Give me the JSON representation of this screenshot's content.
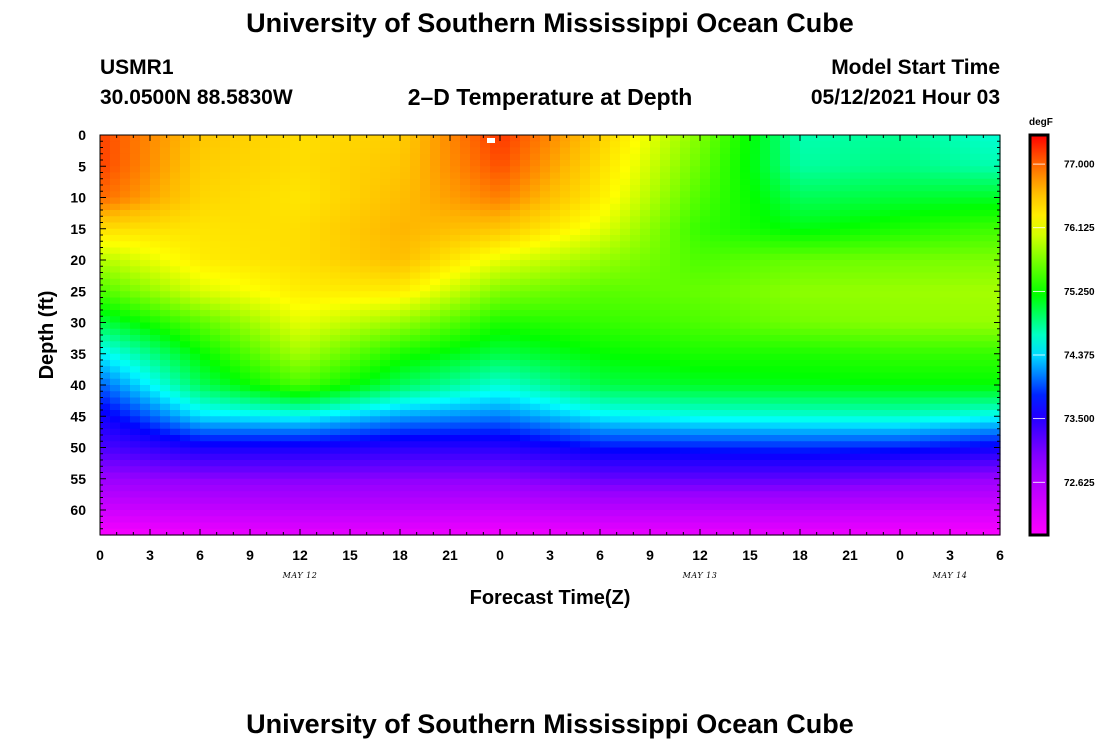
{
  "header": {
    "title_top": "University of Southern Mississippi Ocean Cube",
    "title_bottom": "University of Southern Mississippi Ocean Cube",
    "station_id": "USMR1",
    "station_coords": "30.0500N  88.5830W",
    "plot_title": "2–D Temperature at Depth",
    "model_start_label": "Model Start Time",
    "model_start_value": "05/12/2021 Hour 03"
  },
  "chart_data": {
    "type": "heatmap",
    "title": "2–D Temperature at Depth",
    "xlabel": "Forecast Time(Z)",
    "ylabel": "Depth (ft)",
    "x_tick_labels": [
      "0",
      "3",
      "6",
      "9",
      "12",
      "15",
      "18",
      "21",
      "0",
      "3",
      "6",
      "9",
      "12",
      "15",
      "18",
      "21",
      "0",
      "3",
      "6"
    ],
    "x_hours": [
      0,
      3,
      6,
      9,
      12,
      15,
      18,
      21,
      24,
      27,
      30,
      33,
      36,
      39,
      42,
      45,
      48,
      51,
      54
    ],
    "date_labels": [
      {
        "text": "MAY 12",
        "hour": 12
      },
      {
        "text": "MAY 13",
        "hour": 36
      },
      {
        "text": "MAY 14",
        "hour": 51
      }
    ],
    "y_tick_labels": [
      "0",
      "5",
      "10",
      "15",
      "20",
      "25",
      "30",
      "35",
      "40",
      "45",
      "50",
      "55",
      "60"
    ],
    "y_ticks_ft": [
      0,
      5,
      10,
      15,
      20,
      25,
      30,
      35,
      40,
      45,
      50,
      55,
      60
    ],
    "xlim": [
      0,
      54
    ],
    "ylim_ft": [
      0,
      64
    ],
    "colorbar": {
      "unit": "degF",
      "min": 71.9,
      "max": 77.4,
      "ticks": [
        "77.000",
        "76.125",
        "75.250",
        "74.375",
        "73.500",
        "72.625"
      ]
    },
    "temperature_field": {
      "x_hours": [
        0,
        6,
        12,
        18,
        24,
        30,
        36,
        42,
        48,
        54
      ],
      "depth_ft": [
        0,
        5,
        10,
        15,
        20,
        25,
        30,
        35,
        40,
        45,
        50,
        55,
        60,
        64
      ],
      "degF": [
        [
          77.15,
          76.55,
          76.4,
          76.5,
          77.2,
          76.5,
          75.7,
          74.7,
          74.8,
          74.6
        ],
        [
          77.15,
          76.5,
          76.4,
          76.55,
          77.1,
          76.4,
          75.6,
          74.75,
          74.85,
          74.7
        ],
        [
          77.0,
          76.45,
          76.35,
          76.6,
          76.9,
          76.3,
          75.5,
          74.95,
          75.05,
          75.1
        ],
        [
          76.4,
          76.35,
          76.4,
          76.65,
          76.55,
          76.1,
          75.4,
          75.15,
          75.3,
          75.45
        ],
        [
          75.9,
          76.3,
          76.4,
          76.6,
          76.1,
          75.8,
          75.5,
          75.6,
          75.65,
          75.7
        ],
        [
          75.5,
          76.05,
          76.3,
          76.3,
          75.7,
          75.55,
          75.6,
          75.75,
          75.8,
          75.85
        ],
        [
          75.0,
          75.55,
          76.1,
          75.8,
          75.3,
          75.4,
          75.5,
          75.65,
          75.75,
          75.8
        ],
        [
          74.45,
          75.2,
          75.85,
          75.3,
          75.0,
          75.2,
          75.3,
          75.3,
          75.4,
          75.4
        ],
        [
          74.0,
          74.95,
          75.5,
          74.95,
          74.6,
          75.0,
          75.1,
          75.15,
          75.2,
          75.2
        ],
        [
          73.6,
          74.4,
          74.5,
          74.2,
          74.1,
          74.45,
          74.55,
          74.6,
          74.65,
          74.5
        ],
        [
          73.3,
          73.6,
          73.6,
          73.5,
          73.5,
          73.75,
          73.8,
          73.85,
          73.8,
          73.65
        ],
        [
          72.85,
          72.95,
          73.0,
          72.95,
          72.95,
          73.15,
          73.2,
          73.2,
          73.05,
          72.85
        ],
        [
          72.35,
          72.45,
          72.55,
          72.5,
          72.4,
          72.55,
          72.55,
          72.55,
          72.4,
          72.3
        ],
        [
          71.95,
          72.05,
          72.15,
          72.1,
          72.0,
          72.1,
          72.1,
          72.1,
          72.0,
          71.95
        ]
      ]
    }
  }
}
